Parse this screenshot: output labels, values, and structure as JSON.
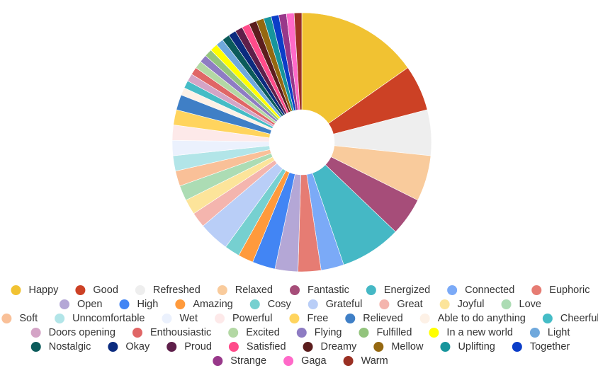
{
  "chart_data": {
    "type": "pie",
    "donut": true,
    "legend_position": "bottom",
    "categories": [
      "Happy",
      "Good",
      "Refreshed",
      "Relaxed",
      "Fantastic",
      "Energized",
      "Connected",
      "Euphoric",
      "Open",
      "High",
      "Amazing",
      "Cosy",
      "Grateful",
      "Great",
      "Joyful",
      "Love",
      "Soft",
      "Unncomfortable",
      "Wet",
      "Powerful",
      "Free",
      "Relieved",
      "Able to do anything",
      "Cheerful",
      "Doors opening",
      "Enthousiastic",
      "Excited",
      "Flying",
      "Fulfilled",
      "In a new world",
      "Light",
      "Nostalgic",
      "Okay",
      "Proud",
      "Satisfied",
      "Dreamy",
      "Mellow",
      "Uplifting",
      "Together",
      "Strange",
      "Gaga",
      "Warm"
    ],
    "values": [
      16,
      6,
      6,
      6,
      5,
      8,
      3,
      3,
      3,
      3,
      2,
      2,
      4,
      2,
      2,
      2,
      2,
      2,
      2,
      2,
      2,
      2,
      1,
      1,
      1,
      1,
      1,
      1,
      1,
      1,
      1,
      1,
      1,
      1,
      1,
      1,
      1,
      1,
      1,
      1,
      1,
      1
    ],
    "colors": [
      "#f1c232",
      "#cc4125",
      "#eeeeee",
      "#f9cb9c",
      "#a64d79",
      "#45b8c5",
      "#7baaf7",
      "#e67c73",
      "#b4a7d6",
      "#4285f4",
      "#ff9a3c",
      "#76d0d0",
      "#b9cef7",
      "#f4b5ae",
      "#fce49a",
      "#acdcb4",
      "#f9c098",
      "#b2e5e8",
      "#ebf1fd",
      "#fde9e9",
      "#ffd45e",
      "#3f7fc6",
      "#fdf1e6",
      "#45bcc6",
      "#d4a4c6",
      "#e06666",
      "#b3d8a4",
      "#8e7cc3",
      "#93c47d",
      "#ffff00",
      "#6fa8dc",
      "#0b5b5b",
      "#0b2b7f",
      "#5e1f4a",
      "#ff4b8a",
      "#5b1d1d",
      "#956811",
      "#17959c",
      "#0b3dc8",
      "#98388a",
      "#ff69c8",
      "#9a3023"
    ]
  }
}
